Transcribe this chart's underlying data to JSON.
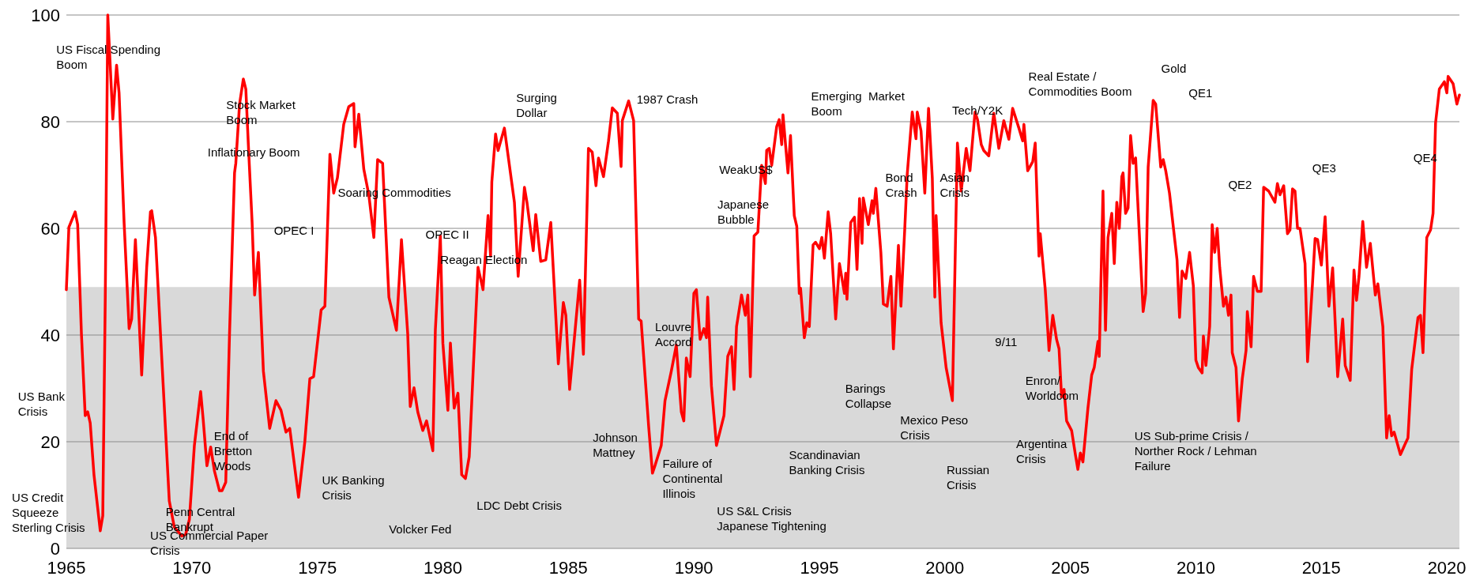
{
  "chart_data": {
    "type": "line",
    "grid": "y",
    "xlim": [
      1965,
      2020.5
    ],
    "xticks": [
      1965,
      1970,
      1975,
      1980,
      1985,
      1990,
      1995,
      2000,
      2005,
      2010,
      2015,
      2020
    ],
    "ylim": [
      0,
      100
    ],
    "yticks": [
      0,
      20,
      40,
      60,
      80,
      100
    ],
    "bands": [
      {
        "axis": "y",
        "from": 0,
        "to": 49,
        "color": "#d9d9d9"
      }
    ],
    "series": [
      {
        "color": "#ff0000",
        "x": [
          1965.0,
          1965.1,
          1965.35,
          1965.45,
          1965.6,
          1965.75,
          1965.85,
          1965.95,
          1966.1,
          1966.35,
          1966.45,
          1966.55,
          1966.65,
          1966.85,
          1967.0,
          1967.1,
          1967.3,
          1967.5,
          1967.6,
          1967.75,
          1968.0,
          1968.2,
          1968.35,
          1968.4,
          1968.55,
          1968.85,
          1969.1,
          1969.3,
          1969.6,
          1969.75,
          1969.9,
          1970.1,
          1970.35,
          1970.45,
          1970.6,
          1970.75,
          1970.9,
          1971.1,
          1971.2,
          1971.35,
          1971.5,
          1971.7,
          1971.75,
          1971.9,
          1972.05,
          1972.15,
          1972.25,
          1972.4,
          1972.5,
          1972.65,
          1972.85,
          1973.1,
          1973.35,
          1973.55,
          1973.75,
          1973.9,
          1974.25,
          1974.5,
          1974.7,
          1974.85,
          1975.15,
          1975.3,
          1975.5,
          1975.65,
          1975.8,
          1976.05,
          1976.25,
          1976.45,
          1976.5,
          1976.65,
          1976.85,
          1977.05,
          1977.25,
          1977.4,
          1977.6,
          1977.85,
          1978.15,
          1978.35,
          1978.6,
          1978.7,
          1978.85,
          1979.0,
          1979.2,
          1979.35,
          1979.6,
          1979.7,
          1979.9,
          1980.0,
          1980.2,
          1980.3,
          1980.45,
          1980.6,
          1980.75,
          1980.9,
          1981.05,
          1981.2,
          1981.4,
          1981.6,
          1981.8,
          1981.9,
          1981.95,
          1982.1,
          1982.2,
          1982.45,
          1982.85,
          1983.0,
          1983.25,
          1983.35,
          1983.6,
          1983.7,
          1983.9,
          1984.1,
          1984.3,
          1984.6,
          1984.8,
          1984.9,
          1985.05,
          1985.2,
          1985.45,
          1985.6,
          1985.8,
          1985.95,
          1986.1,
          1986.2,
          1986.4,
          1986.6,
          1986.75,
          1986.95,
          1987.1,
          1987.15,
          1987.4,
          1987.6,
          1987.8,
          1987.9,
          1988.2,
          1988.35,
          1988.45,
          1988.7,
          1988.85,
          1989.1,
          1989.3,
          1989.5,
          1989.6,
          1989.7,
          1989.85,
          1990.0,
          1990.1,
          1990.25,
          1990.4,
          1990.5,
          1990.55,
          1990.7,
          1990.9,
          1991.2,
          1991.35,
          1991.5,
          1991.6,
          1991.7,
          1991.9,
          1992.05,
          1992.15,
          1992.25,
          1992.4,
          1992.55,
          1992.7,
          1992.85,
          1992.9,
          1993.0,
          1993.1,
          1993.3,
          1993.4,
          1993.5,
          1993.55,
          1993.75,
          1993.85,
          1994.0,
          1994.1,
          1994.2,
          1994.25,
          1994.4,
          1994.5,
          1994.6,
          1994.75,
          1994.85,
          1995.0,
          1995.1,
          1995.2,
          1995.35,
          1995.45,
          1995.65,
          1995.8,
          1996.0,
          1996.05,
          1996.1,
          1996.25,
          1996.4,
          1996.5,
          1996.6,
          1996.7,
          1996.75,
          1996.95,
          1997.1,
          1997.15,
          1997.25,
          1997.45,
          1997.55,
          1997.7,
          1997.85,
          1997.95,
          1998.15,
          1998.25,
          1998.4,
          1998.5,
          1998.7,
          1998.85,
          1998.9,
          1999.05,
          1999.2,
          1999.35,
          1999.5,
          1999.6,
          1999.65,
          1999.85,
          2000.05,
          2000.3,
          2000.5,
          2000.65,
          2000.85,
          2001.0,
          2001.2,
          2001.3,
          2001.45,
          2001.55,
          2001.75,
          2001.95,
          2002.15,
          2002.35,
          2002.55,
          2002.7,
          2002.95,
          2003.1,
          2003.15,
          2003.3,
          2003.5,
          2003.6,
          2003.75,
          2003.8,
          2004.0,
          2004.15,
          2004.3,
          2004.45,
          2004.55,
          2004.65,
          2004.75,
          2004.85,
          2005.05,
          2005.2,
          2005.3,
          2005.4,
          2005.5,
          2005.7,
          2005.85,
          2005.95,
          2006.1,
          2006.15,
          2006.3,
          2006.4,
          2006.5,
          2006.65,
          2006.75,
          2006.85,
          2006.95,
          2007.05,
          2007.1,
          2007.2,
          2007.3,
          2007.4,
          2007.5,
          2007.6,
          2007.9,
          2008.0,
          2008.1,
          2008.3,
          2008.4,
          2008.6,
          2008.7,
          2008.8,
          2008.95,
          2009.05,
          2009.25,
          2009.35,
          2009.45,
          2009.6,
          2009.75,
          2009.9,
          2010.0,
          2010.1,
          2010.25,
          2010.3,
          2010.4,
          2010.55,
          2010.65,
          2010.75,
          2010.85,
          2010.95,
          2011.1,
          2011.2,
          2011.3,
          2011.4,
          2011.45,
          2011.6,
          2011.7,
          2011.85,
          2012.0,
          2012.05,
          2012.2,
          2012.3,
          2012.45,
          2012.6,
          2012.7,
          2012.9,
          2013.15,
          2013.25,
          2013.35,
          2013.5,
          2013.65,
          2013.75,
          2013.85,
          2013.95,
          2014.05,
          2014.15,
          2014.35,
          2014.45,
          2014.65,
          2014.75,
          2014.85,
          2015.0,
          2015.15,
          2015.3,
          2015.45,
          2015.65,
          2015.85,
          2015.95,
          2016.15,
          2016.3,
          2016.4,
          2016.5,
          2016.65,
          2016.8,
          2016.95,
          2017.15,
          2017.25,
          2017.45,
          2017.6,
          2017.7,
          2017.8,
          2017.9,
          2018.15,
          2018.35,
          2018.45,
          2018.6,
          2018.85,
          2018.95,
          2019.05,
          2019.2,
          2019.35,
          2019.45,
          2019.55,
          2019.7,
          2019.9,
          2020.0,
          2020.05,
          2020.25,
          2020.4,
          2020.5
        ],
        "values": [
          48.5,
          60.2,
          63.1,
          60.7,
          40.2,
          24.9,
          25.6,
          23.5,
          13.8,
          3.3,
          6.1,
          47.1,
          100,
          80.5,
          90.6,
          85.4,
          61.1,
          41.2,
          43,
          57.9,
          32.5,
          52.7,
          63.1,
          63.3,
          58.3,
          31.2,
          8.9,
          4.0,
          2.3,
          2.6,
          5.4,
          19.3,
          29.4,
          24.2,
          15.5,
          19,
          14.5,
          10.8,
          10.8,
          12.4,
          40.2,
          70.4,
          72.2,
          83.3,
          88,
          86.1,
          75.7,
          61.1,
          47.5,
          55.5,
          33.2,
          22.5,
          27.7,
          25.9,
          21.8,
          22.5,
          9.6,
          20,
          31.8,
          32.2,
          44.7,
          45.4,
          73.9,
          66.6,
          69.5,
          79.5,
          82.8,
          83.4,
          75.3,
          81.4,
          71.1,
          66.3,
          58.3,
          72.9,
          72.2,
          47.1,
          40.9,
          57.9,
          40.2,
          26.6,
          30.1,
          25.6,
          22.1,
          23.9,
          18.3,
          40.9,
          58.6,
          38.5,
          25.9,
          38.5,
          26.3,
          29.1,
          13.8,
          13.1,
          17.2,
          32.5,
          52.7,
          48.5,
          62.4,
          54.8,
          68.7,
          77.7,
          74.6,
          78.8,
          64.9,
          51,
          67.7,
          64.9,
          55.8,
          62.6,
          53.8,
          54.1,
          61.1,
          34.6,
          46.1,
          43.7,
          29.8,
          37.4,
          50.3,
          36.4,
          75,
          74.3,
          68,
          73.2,
          69.7,
          76.4,
          82.6,
          81.6,
          71.6,
          80.2,
          83.9,
          80.2,
          43,
          42.6,
          22.8,
          14.1,
          15.5,
          19.3,
          27.7,
          33.2,
          38.1,
          25.6,
          23.9,
          35.7,
          32.2,
          47.8,
          48.5,
          39.2,
          41.2,
          39.5,
          47.1,
          30.5,
          19.3,
          24.9,
          36,
          37.8,
          29.8,
          41.6,
          47.5,
          43.7,
          47.5,
          32.2,
          58.6,
          59.3,
          71.8,
          68.4,
          74.6,
          75,
          71.8,
          79.1,
          80.4,
          75.7,
          81.3,
          70.4,
          77.4,
          62.4,
          60.4,
          47.8,
          48.8,
          39.5,
          42.3,
          41.6,
          56.9,
          57.4,
          56.2,
          58.3,
          54.4,
          63.1,
          59,
          43,
          53.4,
          47.8,
          51.6,
          46.7,
          61.1,
          62.1,
          52.3,
          65.6,
          57.2,
          65.7,
          60.7,
          65.2,
          62.8,
          67.5,
          55.5,
          45.8,
          45.4,
          51,
          37.4,
          56.8,
          45.4,
          59.7,
          70.1,
          81.8,
          76.8,
          81.8,
          78.3,
          66.6,
          82.5,
          69.4,
          47.1,
          62.4,
          42.3,
          33.9,
          27.7,
          76,
          67,
          75,
          70.8,
          81.8,
          80.4,
          75.7,
          74.6,
          73.6,
          81.6,
          75,
          80.2,
          76.7,
          82.5,
          78.8,
          76.4,
          79.5,
          70.8,
          72.5,
          76,
          54.8,
          59,
          48.5,
          37.1,
          43.7,
          39.2,
          37.4,
          28.4,
          29.8,
          23.9,
          22.1,
          17.6,
          14.8,
          17.9,
          16.2,
          26.3,
          32.5,
          33.9,
          38.8,
          36,
          67,
          40.9,
          58.3,
          62.8,
          53.4,
          64.9,
          60,
          69.7,
          70.4,
          62.8,
          63.8,
          77.4,
          72.2,
          73.2,
          44.4,
          47.8,
          71.5,
          84,
          83.3,
          71.5,
          72.9,
          70.8,
          66.6,
          62.4,
          54.1,
          43.3,
          52,
          50.6,
          55.5,
          49.2,
          35.3,
          33.9,
          32.9,
          39.8,
          34.3,
          41.6,
          60.7,
          55.5,
          60,
          52.7,
          45.4,
          47.1,
          43.7,
          47.5,
          36.7,
          33.9,
          23.9,
          31.8,
          37.1,
          44.4,
          37.8,
          51,
          48.2,
          48.2,
          67.7,
          67,
          64.9,
          68.4,
          66.3,
          68,
          59,
          59.7,
          67.4,
          67,
          60,
          60,
          53.4,
          35,
          49.9,
          58.1,
          57.9,
          53.1,
          62.2,
          45.4,
          52.6,
          32.2,
          43,
          34.3,
          31.5,
          52.2,
          46.5,
          51,
          61.3,
          52.7,
          57.2,
          47.5,
          49.6,
          41.6,
          20.7,
          24.9,
          21.1,
          21.8,
          17.6,
          19.7,
          20.7,
          33.6,
          43.3,
          43.7,
          36.7,
          58.3,
          59.7,
          62.8,
          79.8,
          86.1,
          87.5,
          85.4,
          88.5,
          87.1,
          83.3,
          85
        ]
      }
    ],
    "annotations": [
      "US Fiscal Spending\nBoom",
      "Stock Market\nBoom",
      "Inflationary Boom",
      "US Bank\nCrisis",
      "End of\nBretton\nWoods",
      "US Credit\nSqueeze\nSterling Crisis",
      "Penn Central\nBankrupt",
      "US Commercial Paper\nCrisis",
      "Soaring Commodities",
      "OPEC I",
      "OPEC II",
      "Reagan Election",
      "UK Banking\nCrisis",
      "Volcker Fed",
      "LDC Debt Crisis",
      "Surging\nDollar",
      "1987 Crash",
      "Louvre\nAccord",
      "Johnson\nMattney",
      "Failure of\nContinental\nIllinois",
      "US S&L Crisis\nJapanese Tightening",
      "WeakUS$",
      "Japanese\nBubble",
      "Emerging  Market\nBoom",
      "Bond\nCrash",
      "Asian\nCrisis",
      "Tech/Y2K",
      "Barings\nCollapse",
      "Mexico Peso\nCrisis",
      "Scandinavian\nBanking Crisis",
      "Russian\nCrisis",
      "Real Estate /\nCommodities Boom",
      "Gold",
      "QE1",
      "9/11",
      "Enron/\nWorldcom",
      "Argentina\nCrisis",
      "US Sub-prime Crisis /\nNorther Rock / Lehman\nFailure",
      "QE2",
      "QE3",
      "QE4"
    ]
  }
}
